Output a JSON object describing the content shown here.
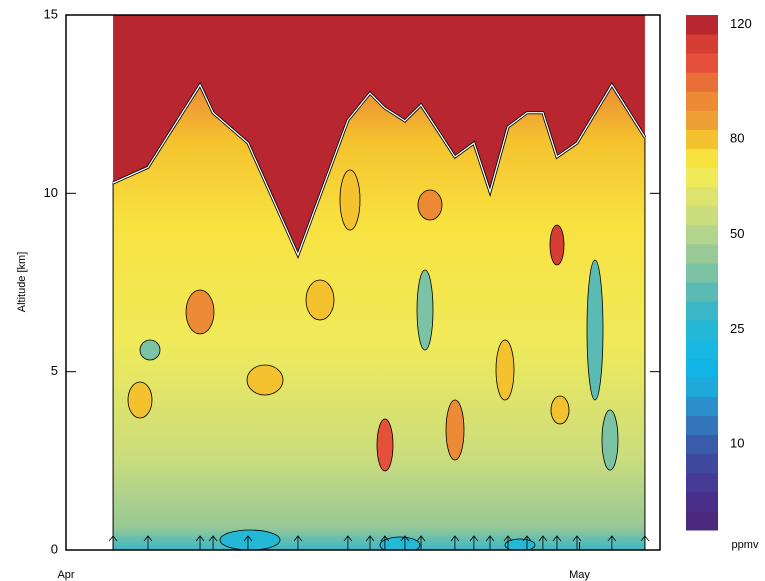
{
  "chart_data": {
    "type": "contour",
    "ylabel": "Altitude [km]",
    "ylim": [
      0,
      15
    ],
    "yticks": [
      0,
      5,
      10,
      15
    ],
    "xlim": [
      0,
      34.7
    ],
    "xticks": [
      {
        "value": 0,
        "label": "Apr"
      },
      {
        "value": 30,
        "label": "May"
      }
    ],
    "tropopause": {
      "color": "#ffffff",
      "x": [
        2.75,
        4.79,
        7.83,
        8.59,
        10.63,
        13.55,
        16.47,
        17.76,
        18.63,
        19.8,
        20.74,
        22.72,
        23.83,
        24.77,
        25.82,
        26.93,
        27.86,
        28.68,
        29.85,
        31.89,
        33.82
      ],
      "values": [
        10.29,
        10.73,
        13.04,
        12.26,
        11.41,
        8.27,
        12.05,
        12.81,
        12.39,
        12.03,
        12.48,
        11.02,
        11.41,
        10.04,
        11.86,
        12.26,
        12.26,
        11.02,
        11.41,
        13.04,
        11.57
      ]
    },
    "colorbar": {
      "label": "ppmv",
      "levels": [
        0,
        2.5,
        5,
        7.5,
        10,
        12.5,
        15,
        17.5,
        20,
        22.5,
        25,
        30,
        35,
        40,
        45,
        50,
        56,
        62,
        68,
        74,
        80,
        86,
        92,
        98,
        105,
        112,
        120
      ],
      "colors": [
        "#4b2a7e",
        "#4a2f8a",
        "#453a94",
        "#3f4a9e",
        "#3a5aaa",
        "#3475bb",
        "#2c8fcc",
        "#1ea8dc",
        "#12b4e5",
        "#18b8e3",
        "#22b8d6",
        "#3bb6c6",
        "#5cbab5",
        "#7cc2a4",
        "#98c996",
        "#b3d48b",
        "#cbdd7d",
        "#dde46d",
        "#f0ea5a",
        "#f8e240",
        "#f4c22e",
        "#eea035",
        "#ec8a35",
        "#e86f38",
        "#e5503a",
        "#d63d33",
        "#b8272f"
      ],
      "ticks": [
        10,
        25,
        50,
        80,
        120
      ]
    }
  }
}
